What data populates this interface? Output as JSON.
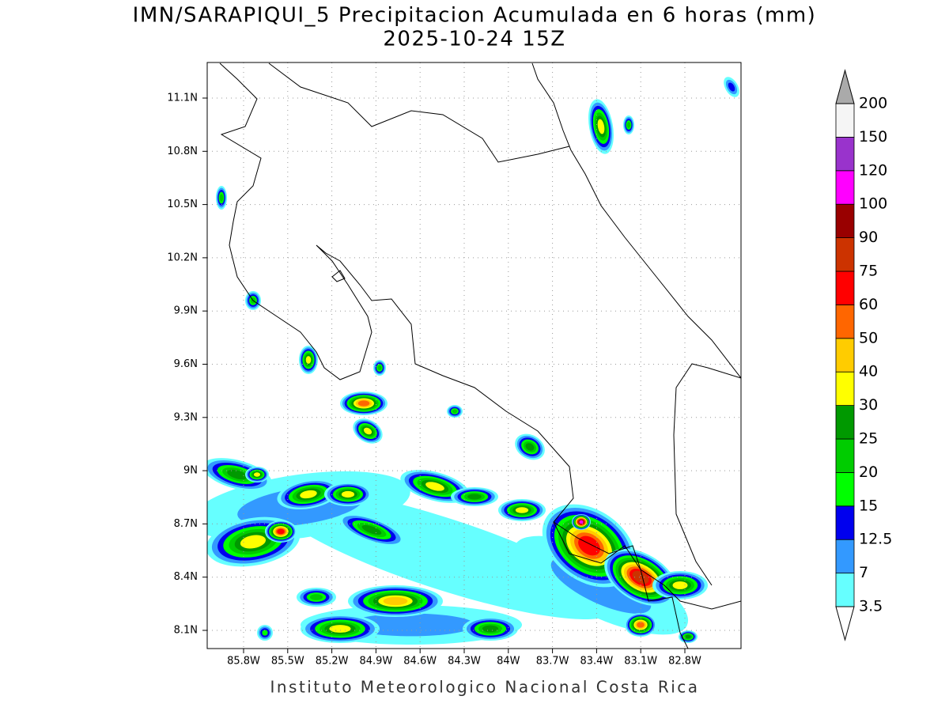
{
  "title": "IMN/SARAPIQUI_5 Precipitacion Acumulada en 6 horas (mm)",
  "subtitle": "2025-10-24 15Z",
  "x_tick_labels": [
    "85.8W",
    "85.5W",
    "85.2W",
    "84.9W",
    "84.6W",
    "84.3W",
    "84W",
    "83.7W",
    "83.4W",
    "83.1W",
    "82.8W"
  ],
  "y_tick_labels": [
    "11.1N",
    "10.8N",
    "10.5N",
    "10.2N",
    "9.9N",
    "9.6N",
    "9.3N",
    "9N",
    "8.7N",
    "8.4N",
    "8.1N"
  ],
  "colorbar": {
    "levels": [
      3.5,
      7,
      12.5,
      15,
      20,
      25,
      30,
      40,
      50,
      60,
      75,
      90,
      100,
      120,
      150,
      200
    ],
    "colors": [
      "#66ffff",
      "#3399ff",
      "#0000ee",
      "#00ff00",
      "#00cc00",
      "#009900",
      "#ffff00",
      "#ffcc00",
      "#ff6600",
      "#ff0000",
      "#cc3300",
      "#990000",
      "#ff00ff",
      "#9933cc",
      "#f5f5f5"
    ],
    "under_color": "#ffffff",
    "over_color": "#aaaaaa"
  },
  "footer": "Instituto Meteorologico Nacional Costa Rica"
}
